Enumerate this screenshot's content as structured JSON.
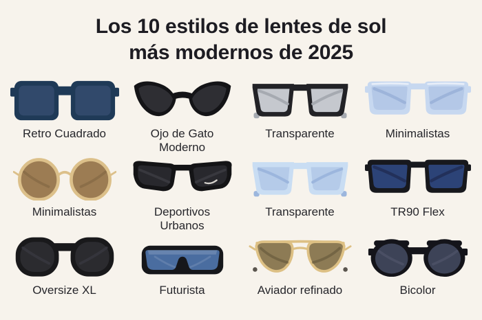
{
  "page": {
    "background_color": "#f7f3ec",
    "title_color": "#1d1c22",
    "label_color": "#26262b"
  },
  "title": {
    "line1": "Los 10 estilos de lentes de sol",
    "line2": "más modernos de 2025"
  },
  "items": [
    {
      "label": "Retro Cuadrado",
      "style": "square",
      "icon": "retro-square-sunglasses-icon",
      "colors": {
        "frame": "#1f3a57",
        "lens": "#31496b"
      }
    },
    {
      "label": "Ojo de Gato Moderno",
      "style": "cateye",
      "icon": "cat-eye-sunglasses-icon",
      "colors": {
        "frame": "#141417",
        "lens": "#2e2e33"
      }
    },
    {
      "label": "Transparente",
      "style": "wayfarer",
      "icon": "clear-lens-sunglasses-icon",
      "colors": {
        "frame": "#222226",
        "lens": "#c5c8ce",
        "temple": "#a6aab1"
      }
    },
    {
      "label": "Minimalistas",
      "style": "rect",
      "icon": "light-blue-rect-sunglasses-icon",
      "highlight": true,
      "colors": {
        "frame": "#c7d8f0",
        "lens": "#b4c8e7",
        "temple": "#9db4da"
      }
    },
    {
      "label": "Minimalistas",
      "style": "round-wire",
      "icon": "round-wire-sunglasses-icon",
      "colors": {
        "frame": "#dcc08a",
        "lens": "#9c7c53",
        "temple": "#7a5f3e"
      }
    },
    {
      "label": "Deportivos Urbanos",
      "style": "sport",
      "icon": "sport-sunglasses-icon",
      "colors": {
        "frame": "#141416",
        "lens": "#28282d",
        "temple": "#3c3c42",
        "accent": "#e9e6df"
      }
    },
    {
      "label": "Transparente",
      "style": "wayfarer",
      "icon": "light-blue-clear-sunglasses-icon",
      "colors": {
        "frame": "#c9ddf3",
        "lens": "#b5cbe9",
        "temple": "#9cb6dd"
      }
    },
    {
      "label": "TR90 Flex",
      "style": "rect",
      "icon": "tr90-flex-sunglasses-icon",
      "colors": {
        "frame": "#17181d",
        "lens": "#2c4377",
        "temple": "#22305a"
      }
    },
    {
      "label": "Oversize XL",
      "style": "oversize",
      "icon": "oversize-sunglasses-icon",
      "colors": {
        "frame": "#19191b",
        "lens": "#2b2b2f",
        "temple": "#3b3b41"
      }
    },
    {
      "label": "Futurista",
      "style": "shield",
      "icon": "shield-sunglasses-icon",
      "colors": {
        "frame": "#16171b",
        "lens": "#4a6da0"
      }
    },
    {
      "label": "Aviador refinado",
      "style": "aviator",
      "icon": "aviator-sunglasses-icon",
      "colors": {
        "frame": "#ddc084",
        "lens": "#8d7b55",
        "temple": "#5c4f33"
      }
    },
    {
      "label": "Bicolor",
      "style": "round",
      "icon": "round-bicolor-sunglasses-icon",
      "colors": {
        "frame": "#14141a",
        "lens": "#3d4357",
        "temple": "#4d5368"
      }
    }
  ]
}
